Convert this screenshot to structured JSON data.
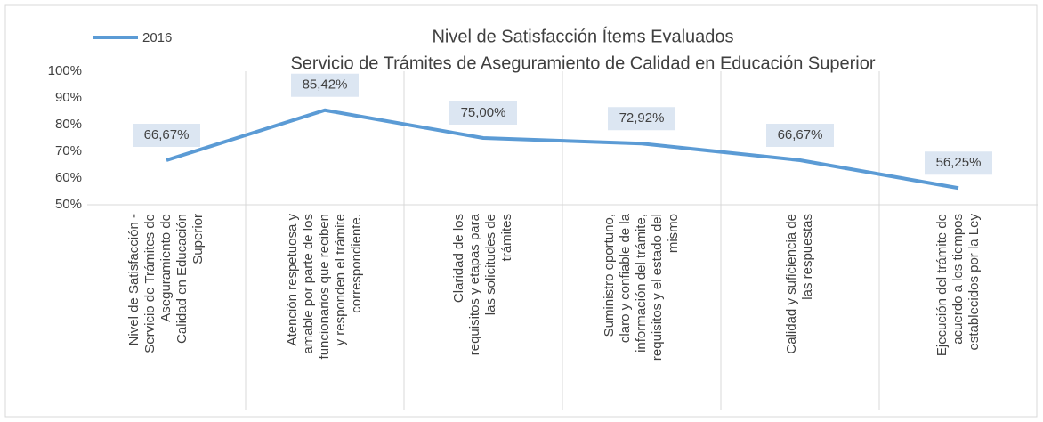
{
  "chart_data": {
    "type": "line",
    "title": [
      "Nivel de Satisfacción Ítems Evaluados",
      "Servicio de Trámites de Aseguramiento de Calidad en Educación Superior"
    ],
    "categories": [
      [
        "Nivel de Satisfacción -",
        "Servicio de Trámites de",
        "Aseguramiento de",
        "Calidad en Educación",
        "Superior"
      ],
      [
        "Atención respetuosa y",
        "amable por parte de los",
        "funcionarios que reciben",
        "y responden el trámite",
        "correspondiente."
      ],
      [
        "Claridad de los",
        "requisitos y etapas para",
        "las solicitudes de",
        "trámites"
      ],
      [
        "Suministro oportuno,",
        "claro y confiable de la",
        "información del trámite,",
        "requisitos y el estado del",
        "mismo"
      ],
      [
        "Calidad y suficiencia de",
        "las respuestas"
      ],
      [
        "Ejecución del trámite de",
        "acuerdo a los tiempos",
        "establecidos por la Ley"
      ]
    ],
    "series": [
      {
        "name": "2016",
        "color": "#5b9bd5",
        "values": [
          66.67,
          85.42,
          75.0,
          72.92,
          66.67,
          56.25
        ],
        "value_labels": [
          "66,67%",
          "85,42%",
          "75,00%",
          "72,92%",
          "66,67%",
          "56,25%"
        ]
      }
    ],
    "ylim": [
      50,
      100
    ],
    "yticks": [
      {
        "value": 50,
        "label": "50%"
      },
      {
        "value": 60,
        "label": "60%"
      },
      {
        "value": 70,
        "label": "70%"
      },
      {
        "value": 80,
        "label": "80%"
      },
      {
        "value": 90,
        "label": "90%"
      },
      {
        "value": 100,
        "label": "100%"
      }
    ],
    "legend": "top-left"
  }
}
